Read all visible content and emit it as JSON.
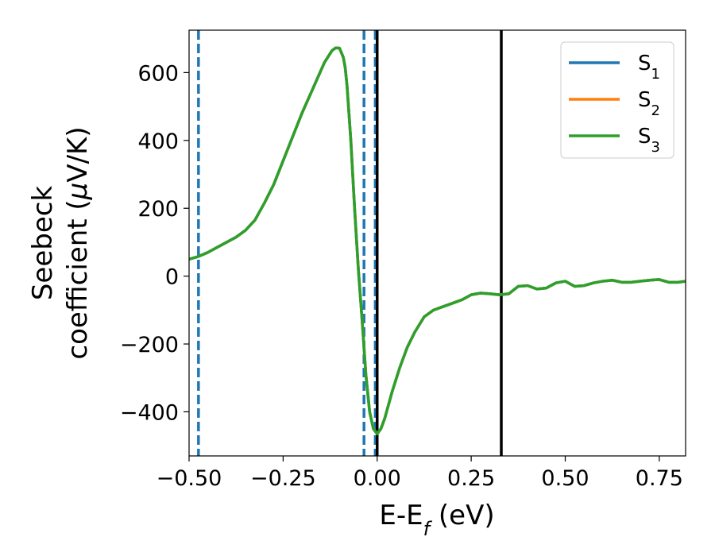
{
  "chart_data": {
    "type": "line",
    "xlabel": "E-E",
    "xlabel_sub": "f",
    "xlabel_unit": " (eV)",
    "ylabel_line1": "Seebeck",
    "ylabel_line2": "coefficient  (",
    "ylabel_mu": "μ",
    "ylabel_unit": "V/K)",
    "xlim": [
      -0.5,
      0.82
    ],
    "ylim": [
      -530,
      725
    ],
    "xticks": [
      -0.5,
      -0.25,
      0.0,
      0.25,
      0.5,
      0.75
    ],
    "xtick_labels": [
      "−0.50",
      "−0.25",
      "0.00",
      "0.25",
      "0.50",
      "0.75"
    ],
    "yticks": [
      -400,
      -200,
      0,
      200,
      400,
      600
    ],
    "ytick_labels": [
      "−400",
      "−200",
      "0",
      "200",
      "400",
      "600"
    ],
    "grid": false,
    "legend_position": "top-right",
    "series": [
      {
        "name": "S",
        "sub": "1",
        "color": "#1f77b4"
      },
      {
        "name": "S",
        "sub": "2",
        "color": "#ff7f0e"
      },
      {
        "name": "S",
        "sub": "3",
        "color": "#2ca02c"
      }
    ],
    "x": [
      -0.5,
      -0.475,
      -0.45,
      -0.425,
      -0.4,
      -0.375,
      -0.35,
      -0.325,
      -0.3,
      -0.275,
      -0.25,
      -0.225,
      -0.2,
      -0.18,
      -0.16,
      -0.14,
      -0.12,
      -0.11,
      -0.1,
      -0.09,
      -0.085,
      -0.08,
      -0.07,
      -0.06,
      -0.05,
      -0.04,
      -0.03,
      -0.02,
      -0.01,
      0.0,
      0.01,
      0.02,
      0.04,
      0.06,
      0.08,
      0.1,
      0.125,
      0.15,
      0.175,
      0.2,
      0.225,
      0.25,
      0.275,
      0.3,
      0.325,
      0.35,
      0.375,
      0.4,
      0.425,
      0.45,
      0.475,
      0.5,
      0.525,
      0.55,
      0.575,
      0.6,
      0.625,
      0.65,
      0.675,
      0.7,
      0.725,
      0.75,
      0.775,
      0.8,
      0.82
    ],
    "y": [
      50,
      58,
      70,
      85,
      100,
      115,
      135,
      165,
      215,
      270,
      340,
      410,
      480,
      530,
      580,
      630,
      665,
      673,
      672,
      645,
      615,
      560,
      400,
      200,
      20,
      -130,
      -290,
      -400,
      -450,
      -465,
      -450,
      -420,
      -340,
      -270,
      -210,
      -165,
      -120,
      -100,
      -90,
      -80,
      -70,
      -55,
      -50,
      -52,
      -55,
      -52,
      -30,
      -28,
      -38,
      -35,
      -20,
      -15,
      -30,
      -28,
      -20,
      -15,
      -12,
      -18,
      -18,
      -15,
      -12,
      -10,
      -18,
      -18,
      -15
    ],
    "vlines": [
      {
        "x": -0.475,
        "style": "dashed",
        "color": "#1f77b4"
      },
      {
        "x": -0.035,
        "style": "dashed",
        "color": "#1f77b4"
      },
      {
        "x": -0.005,
        "style": "dashed",
        "color": "#1f77b4"
      },
      {
        "x": 0.0,
        "style": "solid",
        "color": "#000000"
      },
      {
        "x": 0.33,
        "style": "solid",
        "color": "#000000"
      }
    ]
  }
}
